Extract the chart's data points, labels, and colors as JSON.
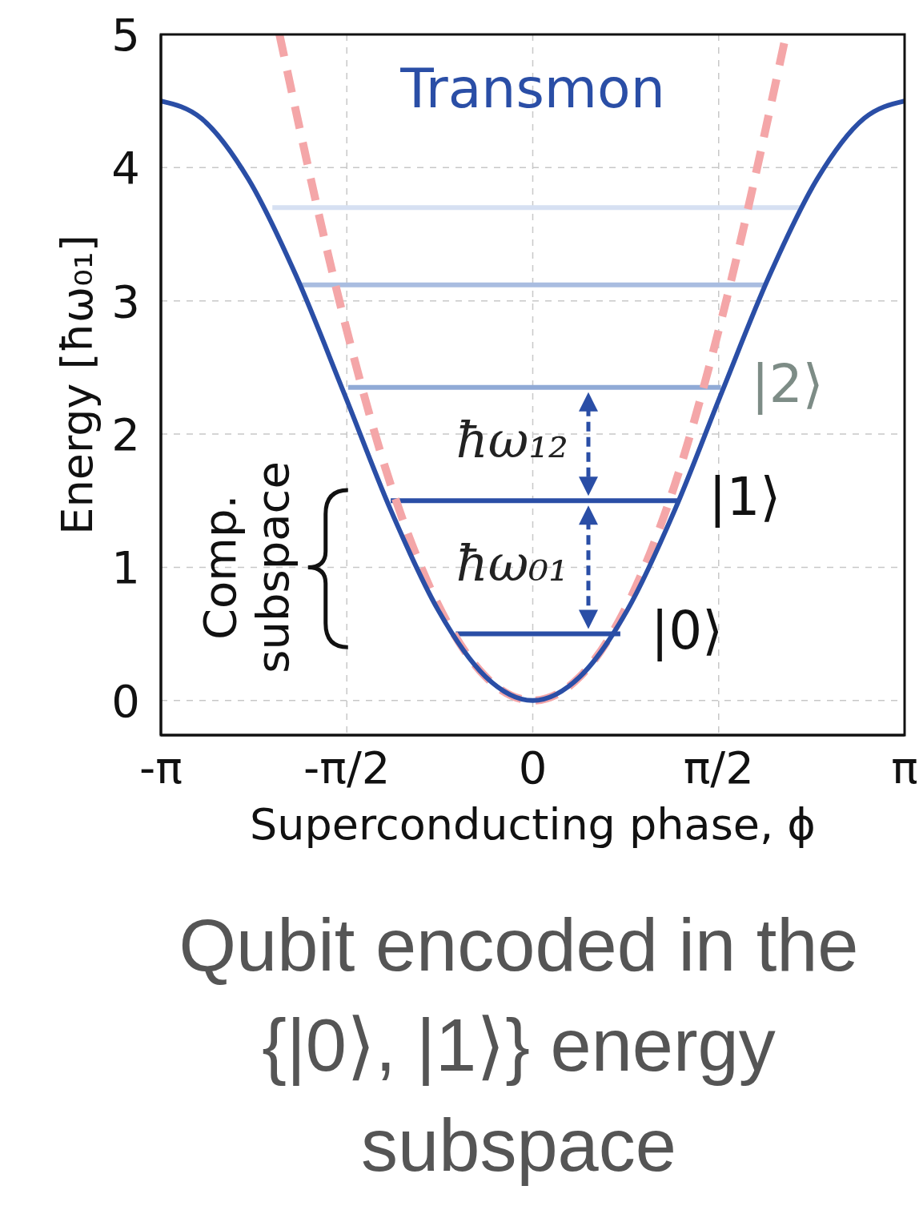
{
  "chart_data": {
    "type": "line",
    "ylabel": "Energy [ħω₀₁]",
    "xlabel": "Superconducting phase, ϕ",
    "xlim": [
      -3.1416,
      3.1416
    ],
    "ylim": [
      -0.26,
      5
    ],
    "xticks": [
      {
        "value": -3.1416,
        "label": "-π"
      },
      {
        "value": -1.5708,
        "label": "-π/2"
      },
      0,
      {
        "value": 1.5708,
        "label": "π/2"
      },
      {
        "value": 3.1416,
        "label": "π"
      }
    ],
    "yticks": [
      0,
      1,
      2,
      3,
      4,
      5
    ],
    "grid": true,
    "series": [
      {
        "name": "Transmon",
        "color": "#2a4ea6",
        "line_style": "solid",
        "x": [
          -3.1416,
          -2.8,
          -2.4,
          -2.0,
          -1.6,
          -1.2,
          -0.8,
          -0.4,
          0,
          0.4,
          0.8,
          1.2,
          1.6,
          2.0,
          2.4,
          2.8,
          3.1416
        ],
        "values": [
          4.5,
          4.37,
          3.91,
          3.19,
          2.32,
          1.43,
          0.68,
          0.18,
          0,
          0.18,
          0.68,
          1.43,
          2.32,
          3.19,
          3.91,
          4.37,
          4.5
        ]
      },
      {
        "color": "#f4a6a8",
        "line_style": "dashed",
        "x": [
          -2.14,
          -1.6,
          -1.2,
          -0.8,
          -0.4,
          0,
          0.4,
          0.8,
          1.2,
          1.6,
          2.14
        ],
        "values": [
          5,
          2.88,
          1.62,
          0.72,
          0.18,
          0,
          0.18,
          0.72,
          1.62,
          2.88,
          5
        ]
      },
      {
        "color": "#2a4ea6",
        "line_style": "solid",
        "x": [
          -0.65,
          0.74
        ],
        "values": [
          0.5,
          0.5
        ]
      },
      {
        "color": "#2a4ea6",
        "line_style": "solid",
        "x": [
          -1.2,
          1.23
        ],
        "values": [
          1.5,
          1.5
        ]
      },
      {
        "color": "#90aad6",
        "line_style": "solid",
        "x": [
          -1.56,
          1.59
        ],
        "values": [
          2.35,
          2.35
        ]
      },
      {
        "color": "#a9bde0",
        "line_style": "solid",
        "x": [
          -1.95,
          1.96
        ],
        "values": [
          3.12,
          3.12
        ]
      },
      {
        "color": "#d6e0f2",
        "line_style": "solid",
        "x": [
          -2.2,
          2.26
        ],
        "values": [
          3.7,
          3.7
        ]
      }
    ],
    "annotations": [
      {
        "text": "|0⟩",
        "x": 0.74,
        "y": 0.5
      },
      {
        "text": "|1⟩",
        "x": 1.23,
        "y": 1.5
      },
      {
        "text": "|2⟩",
        "x": 1.59,
        "y": 2.35
      },
      "ħω₁₂",
      "ħω₀₁",
      "Comp. subspace",
      "Qubit encoded in the {|0⟩, |1⟩} energy subspace"
    ]
  }
}
